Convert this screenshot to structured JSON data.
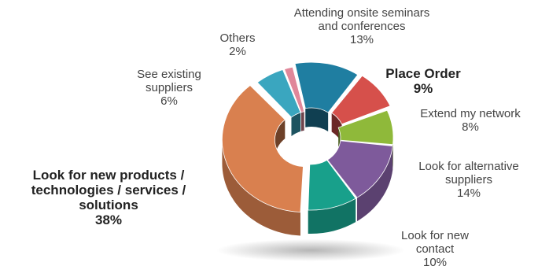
{
  "chart_data": {
    "type": "pie",
    "style": "3d-donut",
    "slices": [
      {
        "label_lines": [
          "Attending onsite seminars",
          "and conferences"
        ],
        "value": 13,
        "value_text": "13%",
        "color": "#1f7ea1",
        "emphasized": false
      },
      {
        "label_lines": [
          "Place Order"
        ],
        "value": 9,
        "value_text": "9%",
        "color": "#d6504b",
        "emphasized": true
      },
      {
        "label_lines": [
          "Extend my network"
        ],
        "value": 8,
        "value_text": "8%",
        "color": "#8fb93a",
        "emphasized": false
      },
      {
        "label_lines": [
          "Look for alternative",
          "suppliers"
        ],
        "value": 14,
        "value_text": "14%",
        "color": "#7e5a9b",
        "emphasized": false
      },
      {
        "label_lines": [
          "Look for new",
          "contact"
        ],
        "value": 10,
        "value_text": "10%",
        "color": "#18a08b",
        "emphasized": false
      },
      {
        "label_lines": [
          "Look for new products /",
          "technologies / services /",
          "solutions"
        ],
        "value": 38,
        "value_text": "38%",
        "color": "#d9804f",
        "emphasized": true
      },
      {
        "label_lines": [
          "See existing",
          "suppliers"
        ],
        "value": 6,
        "value_text": "6%",
        "color": "#3aa6bf",
        "emphasized": false
      },
      {
        "label_lines": [
          "Others"
        ],
        "value": 2,
        "value_text": "2%",
        "color": "#e0879a",
        "emphasized": false
      }
    ]
  }
}
